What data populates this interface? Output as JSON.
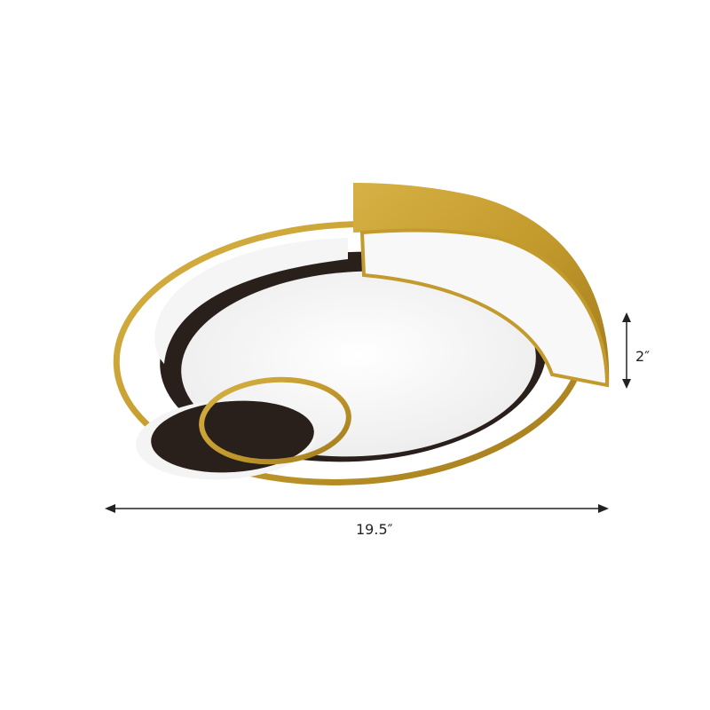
{
  "product": {
    "name_icon": "ceiling-light-fixture",
    "colors": {
      "gold": "#c8a135",
      "black": "#2a201b",
      "diffuser": "#f7f7f7"
    }
  },
  "dimensions": {
    "width_label": "19.5″",
    "height_label": "2″"
  }
}
